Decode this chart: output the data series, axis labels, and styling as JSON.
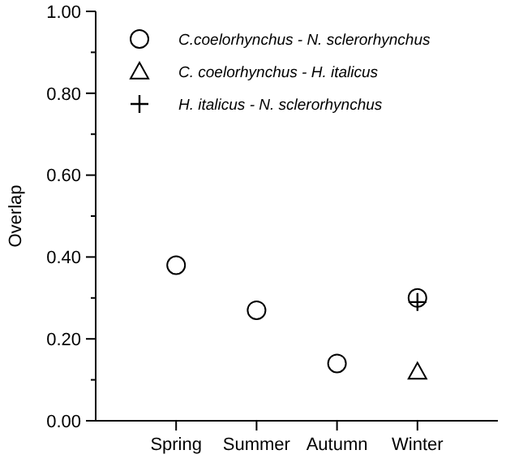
{
  "chart_data": {
    "type": "scatter",
    "ylabel": "Overlap",
    "categories": [
      "Spring",
      "Summer",
      "Autumn",
      "Winter"
    ],
    "ylim": [
      0,
      1
    ],
    "yticks": [
      {
        "value": 0,
        "label": "0.00"
      },
      {
        "value": 0.1,
        "label": null
      },
      {
        "value": 0.2,
        "label": "0.20"
      },
      {
        "value": 0.3,
        "label": null
      },
      {
        "value": 0.4,
        "label": "0.40"
      },
      {
        "value": 0.5,
        "label": null
      },
      {
        "value": 0.6,
        "label": "0.60"
      },
      {
        "value": 0.7,
        "label": null
      },
      {
        "value": 0.8,
        "label": "0.80"
      },
      {
        "value": 0.9,
        "label": null
      },
      {
        "value": 1,
        "label": "1.00"
      }
    ],
    "legend": "top",
    "grid": false,
    "series": [
      {
        "name": "C.coelorhynchus - N. sclerorhynchus",
        "color": "#000000",
        "marker": "circle",
        "values": [
          0.38,
          0.27,
          0.14,
          0.3
        ]
      },
      {
        "name": "C. coelorhynchus - H. italicus",
        "color": "#000000",
        "marker": "triangle",
        "values": [
          null,
          null,
          null,
          0.12
        ]
      },
      {
        "name": "H. italicus - N. sclerorhynchus",
        "color": "#000000",
        "marker": "cross",
        "values": [
          null,
          null,
          null,
          0.29
        ]
      }
    ]
  }
}
